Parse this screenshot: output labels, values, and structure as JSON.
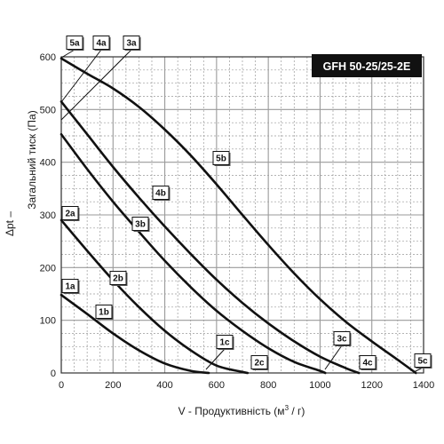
{
  "chart_data": {
    "type": "line",
    "title": "GFH 50-25/25-2E",
    "xlabel": "V - Продуктивність (м³ / г)",
    "xlabel_base": "V - Продуктивність (м",
    "xlabel_sup": "3",
    "xlabel_tail": " / г)",
    "ylabel": "Загальний тиск (Па)",
    "ylabel_symbol": "Δpt –",
    "xlim": [
      0,
      1400
    ],
    "ylim": [
      0,
      600
    ],
    "xticks": [
      0,
      200,
      400,
      600,
      800,
      1000,
      1200,
      1400
    ],
    "yticks": [
      0,
      100,
      200,
      300,
      400,
      500,
      600
    ],
    "grid": true,
    "series": [
      {
        "name": "1b",
        "x": [
          0,
          100,
          200,
          300,
          400,
          500,
          570
        ],
        "y": [
          148,
          112,
          75,
          43,
          18,
          4,
          0
        ]
      },
      {
        "name": "2b",
        "x": [
          0,
          100,
          200,
          300,
          400,
          500,
          600,
          700,
          720
        ],
        "y": [
          290,
          232,
          176,
          125,
          80,
          43,
          14,
          2,
          0
        ]
      },
      {
        "name": "3b",
        "x": [
          0,
          100,
          200,
          300,
          400,
          500,
          600,
          700,
          800,
          900,
          1000,
          1020
        ],
        "y": [
          453,
          387,
          325,
          268,
          213,
          163,
          118,
          80,
          47,
          21,
          4,
          0
        ]
      },
      {
        "name": "4b",
        "x": [
          0,
          100,
          200,
          300,
          400,
          500,
          600,
          700,
          800,
          900,
          1000,
          1100,
          1150
        ],
        "y": [
          515,
          453,
          391,
          333,
          278,
          226,
          177,
          133,
          94,
          60,
          31,
          9,
          0
        ]
      },
      {
        "name": "5b",
        "x": [
          0,
          100,
          200,
          300,
          400,
          500,
          600,
          700,
          800,
          900,
          1000,
          1100,
          1200,
          1300,
          1370
        ],
        "y": [
          597,
          568,
          540,
          505,
          462,
          413,
          358,
          300,
          243,
          189,
          140,
          97,
          60,
          25,
          0
        ]
      }
    ],
    "labels": [
      "1a",
      "1b",
      "1c",
      "2a",
      "2b",
      "2c",
      "3a",
      "3b",
      "3c",
      "4a",
      "4b",
      "4c",
      "5a",
      "5b",
      "5c"
    ]
  },
  "colors": {
    "curve": "#111111",
    "grid": "#9a9a9a",
    "frame": "#333333",
    "badge_bg": "#111111",
    "badge_text": "#ffffff",
    "label_bg": "#ffffff"
  }
}
